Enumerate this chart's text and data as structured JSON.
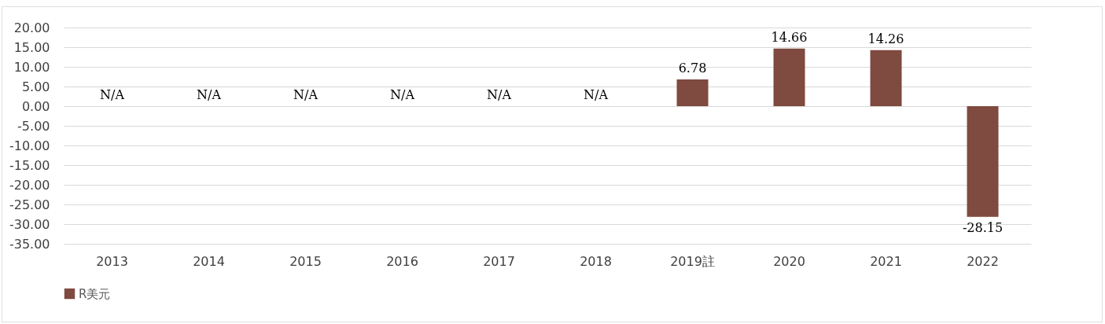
{
  "chart_data": {
    "type": "bar",
    "categories": [
      "2013",
      "2014",
      "2015",
      "2016",
      "2017",
      "2018",
      "2019註",
      "2020",
      "2021",
      "2022"
    ],
    "series": [
      {
        "name": "R美元",
        "color": "#7f4a3f",
        "values": [
          null,
          null,
          null,
          null,
          null,
          null,
          6.78,
          14.66,
          14.26,
          -28.15
        ],
        "value_labels": [
          "N/A",
          "N/A",
          "N/A",
          "N/A",
          "N/A",
          "N/A",
          "6.78",
          "14.66",
          "14.26",
          "-28.15"
        ]
      }
    ],
    "ylim": [
      -35,
      20
    ],
    "yticks": [
      {
        "value": -35,
        "label": "-35.00"
      },
      {
        "value": -30,
        "label": "-30.00"
      },
      {
        "value": -25,
        "label": "-25.00"
      },
      {
        "value": -20,
        "label": "-20.00"
      },
      {
        "value": -15,
        "label": "-15.00"
      },
      {
        "value": -10,
        "label": "-10.00"
      },
      {
        "value": -5,
        "label": "-5.00"
      },
      {
        "value": 0,
        "label": "0.00"
      },
      {
        "value": 5,
        "label": "5.00"
      },
      {
        "value": 10,
        "label": "10.00"
      },
      {
        "value": 15,
        "label": "15.00"
      },
      {
        "value": 20,
        "label": "20.00"
      }
    ],
    "grid": "y",
    "legend": "bottom"
  }
}
